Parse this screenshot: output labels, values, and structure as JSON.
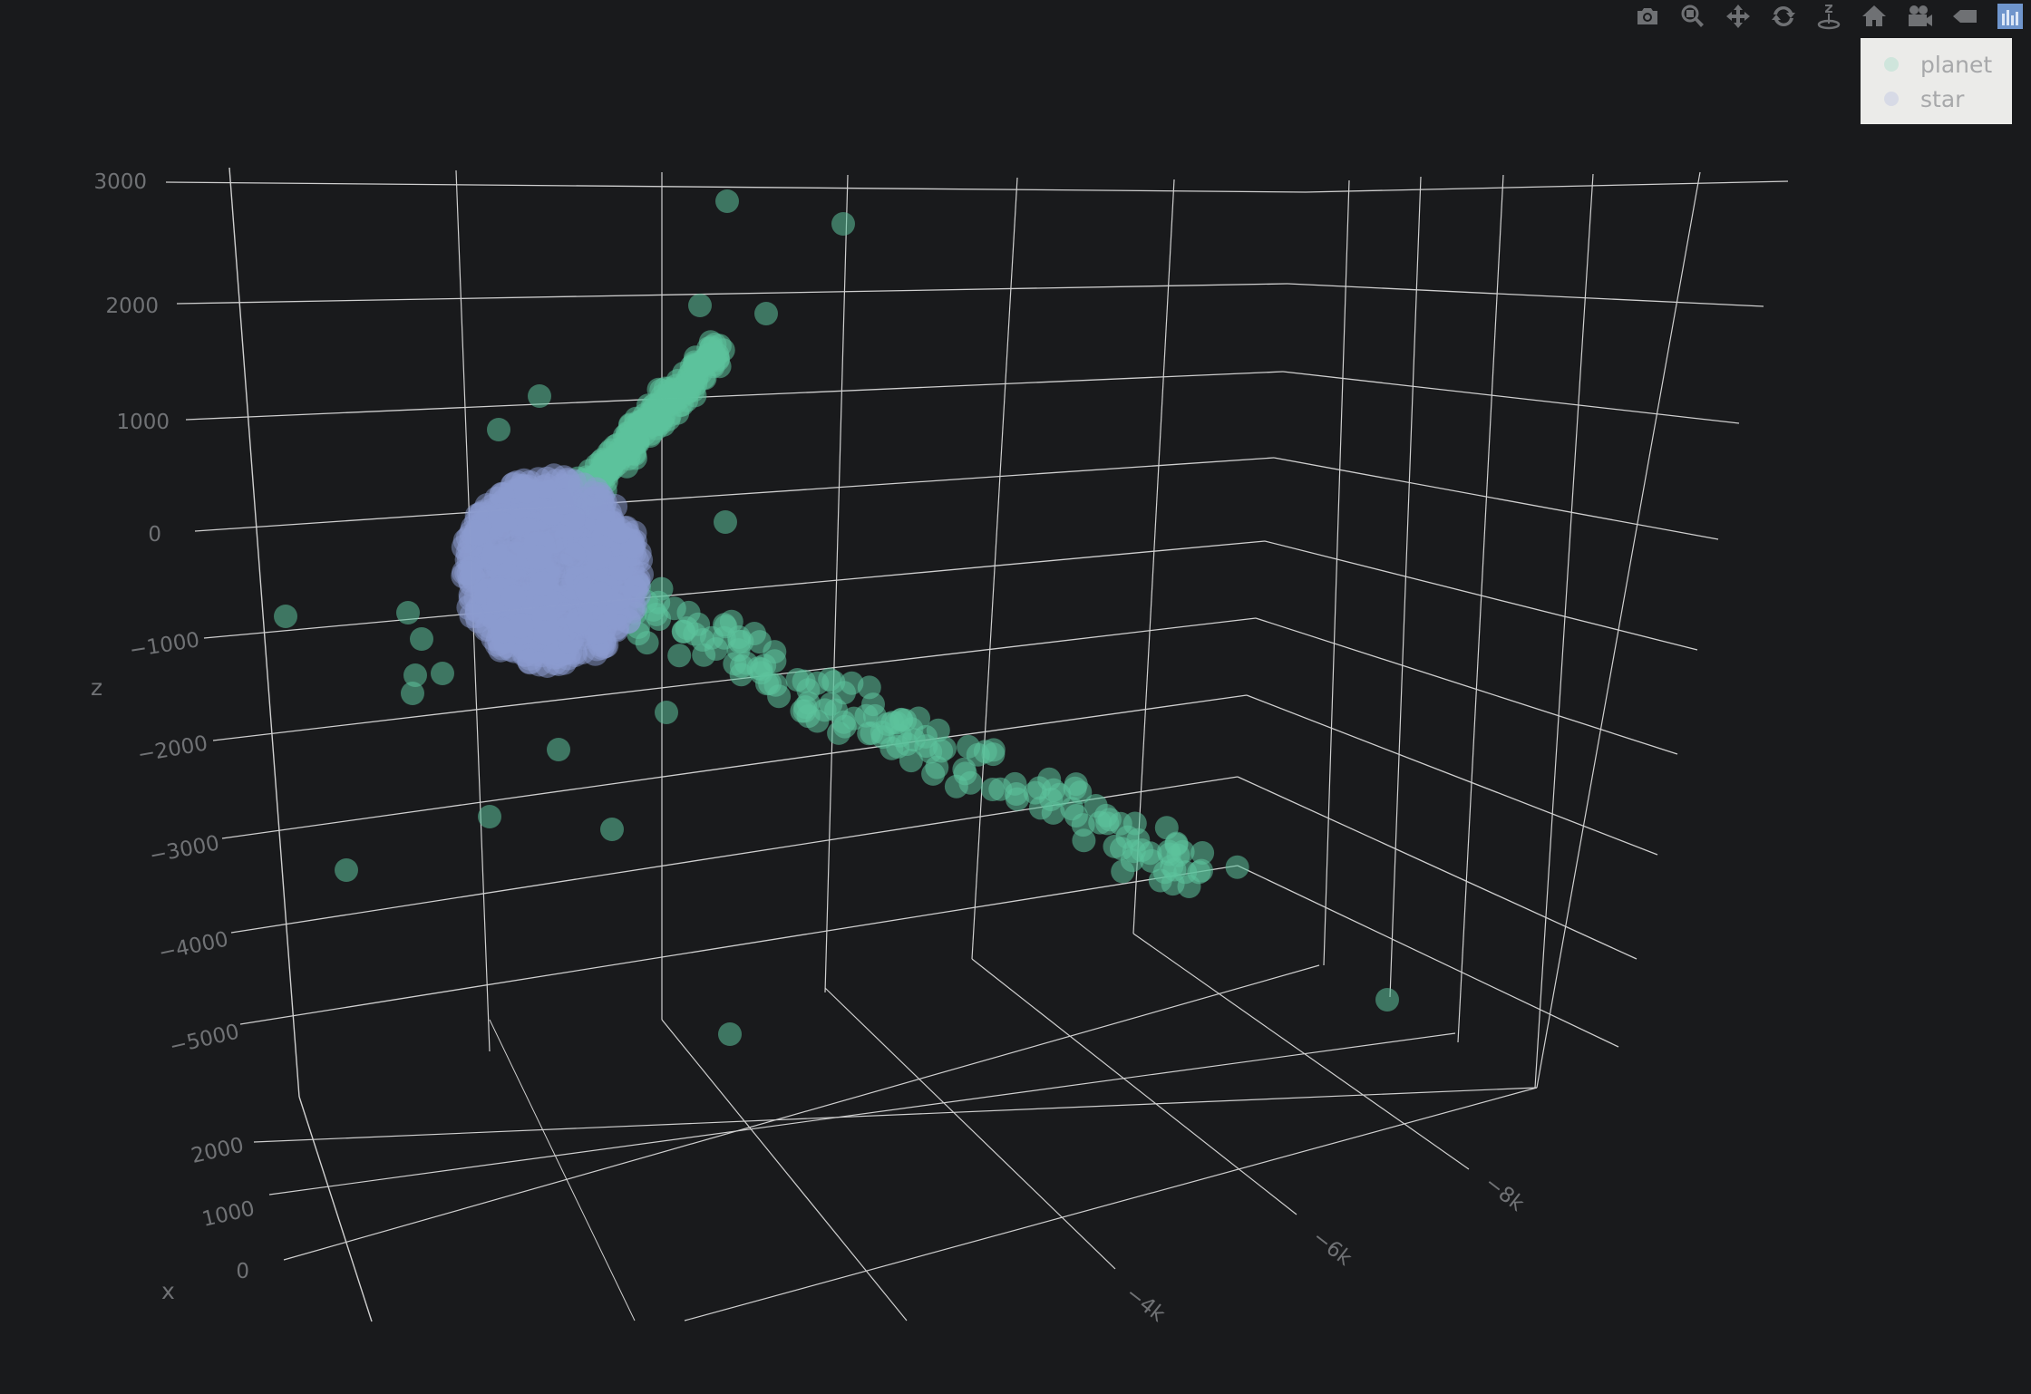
{
  "modebar": {
    "buttons": [
      {
        "name": "camera-icon"
      },
      {
        "name": "zoom-icon"
      },
      {
        "name": "pan-icon"
      },
      {
        "name": "orbit-rotate-icon"
      },
      {
        "name": "turntable-rotate-icon"
      },
      {
        "name": "home-icon"
      },
      {
        "name": "camera-view-icon"
      },
      {
        "name": "hover-tag-icon"
      },
      {
        "name": "plotly-logo-icon"
      }
    ]
  },
  "legend": {
    "items": [
      {
        "label": "planet",
        "color": "#5cc29c"
      },
      {
        "label": "star",
        "color": "#8c9bd0"
      }
    ]
  },
  "chart_data": {
    "type": "scatter3d",
    "axes": {
      "x": {
        "title": "x",
        "ticks": [
          "0",
          "1000",
          "2000"
        ]
      },
      "y": {
        "title": "",
        "ticks": [
          "−4k",
          "−6k",
          "−8k"
        ]
      },
      "z": {
        "title": "z",
        "ticks": [
          "3000",
          "2000",
          "1000",
          "0",
          "−1000",
          "−2000",
          "−3000",
          "−4000",
          "−5000"
        ],
        "range": [
          -5000,
          3000
        ]
      }
    },
    "grid": true,
    "legend_position": "top-right",
    "series": [
      {
        "name": "planet",
        "color": "#5cc29c"
      },
      {
        "name": "star",
        "color": "#8c9bd0"
      }
    ]
  }
}
